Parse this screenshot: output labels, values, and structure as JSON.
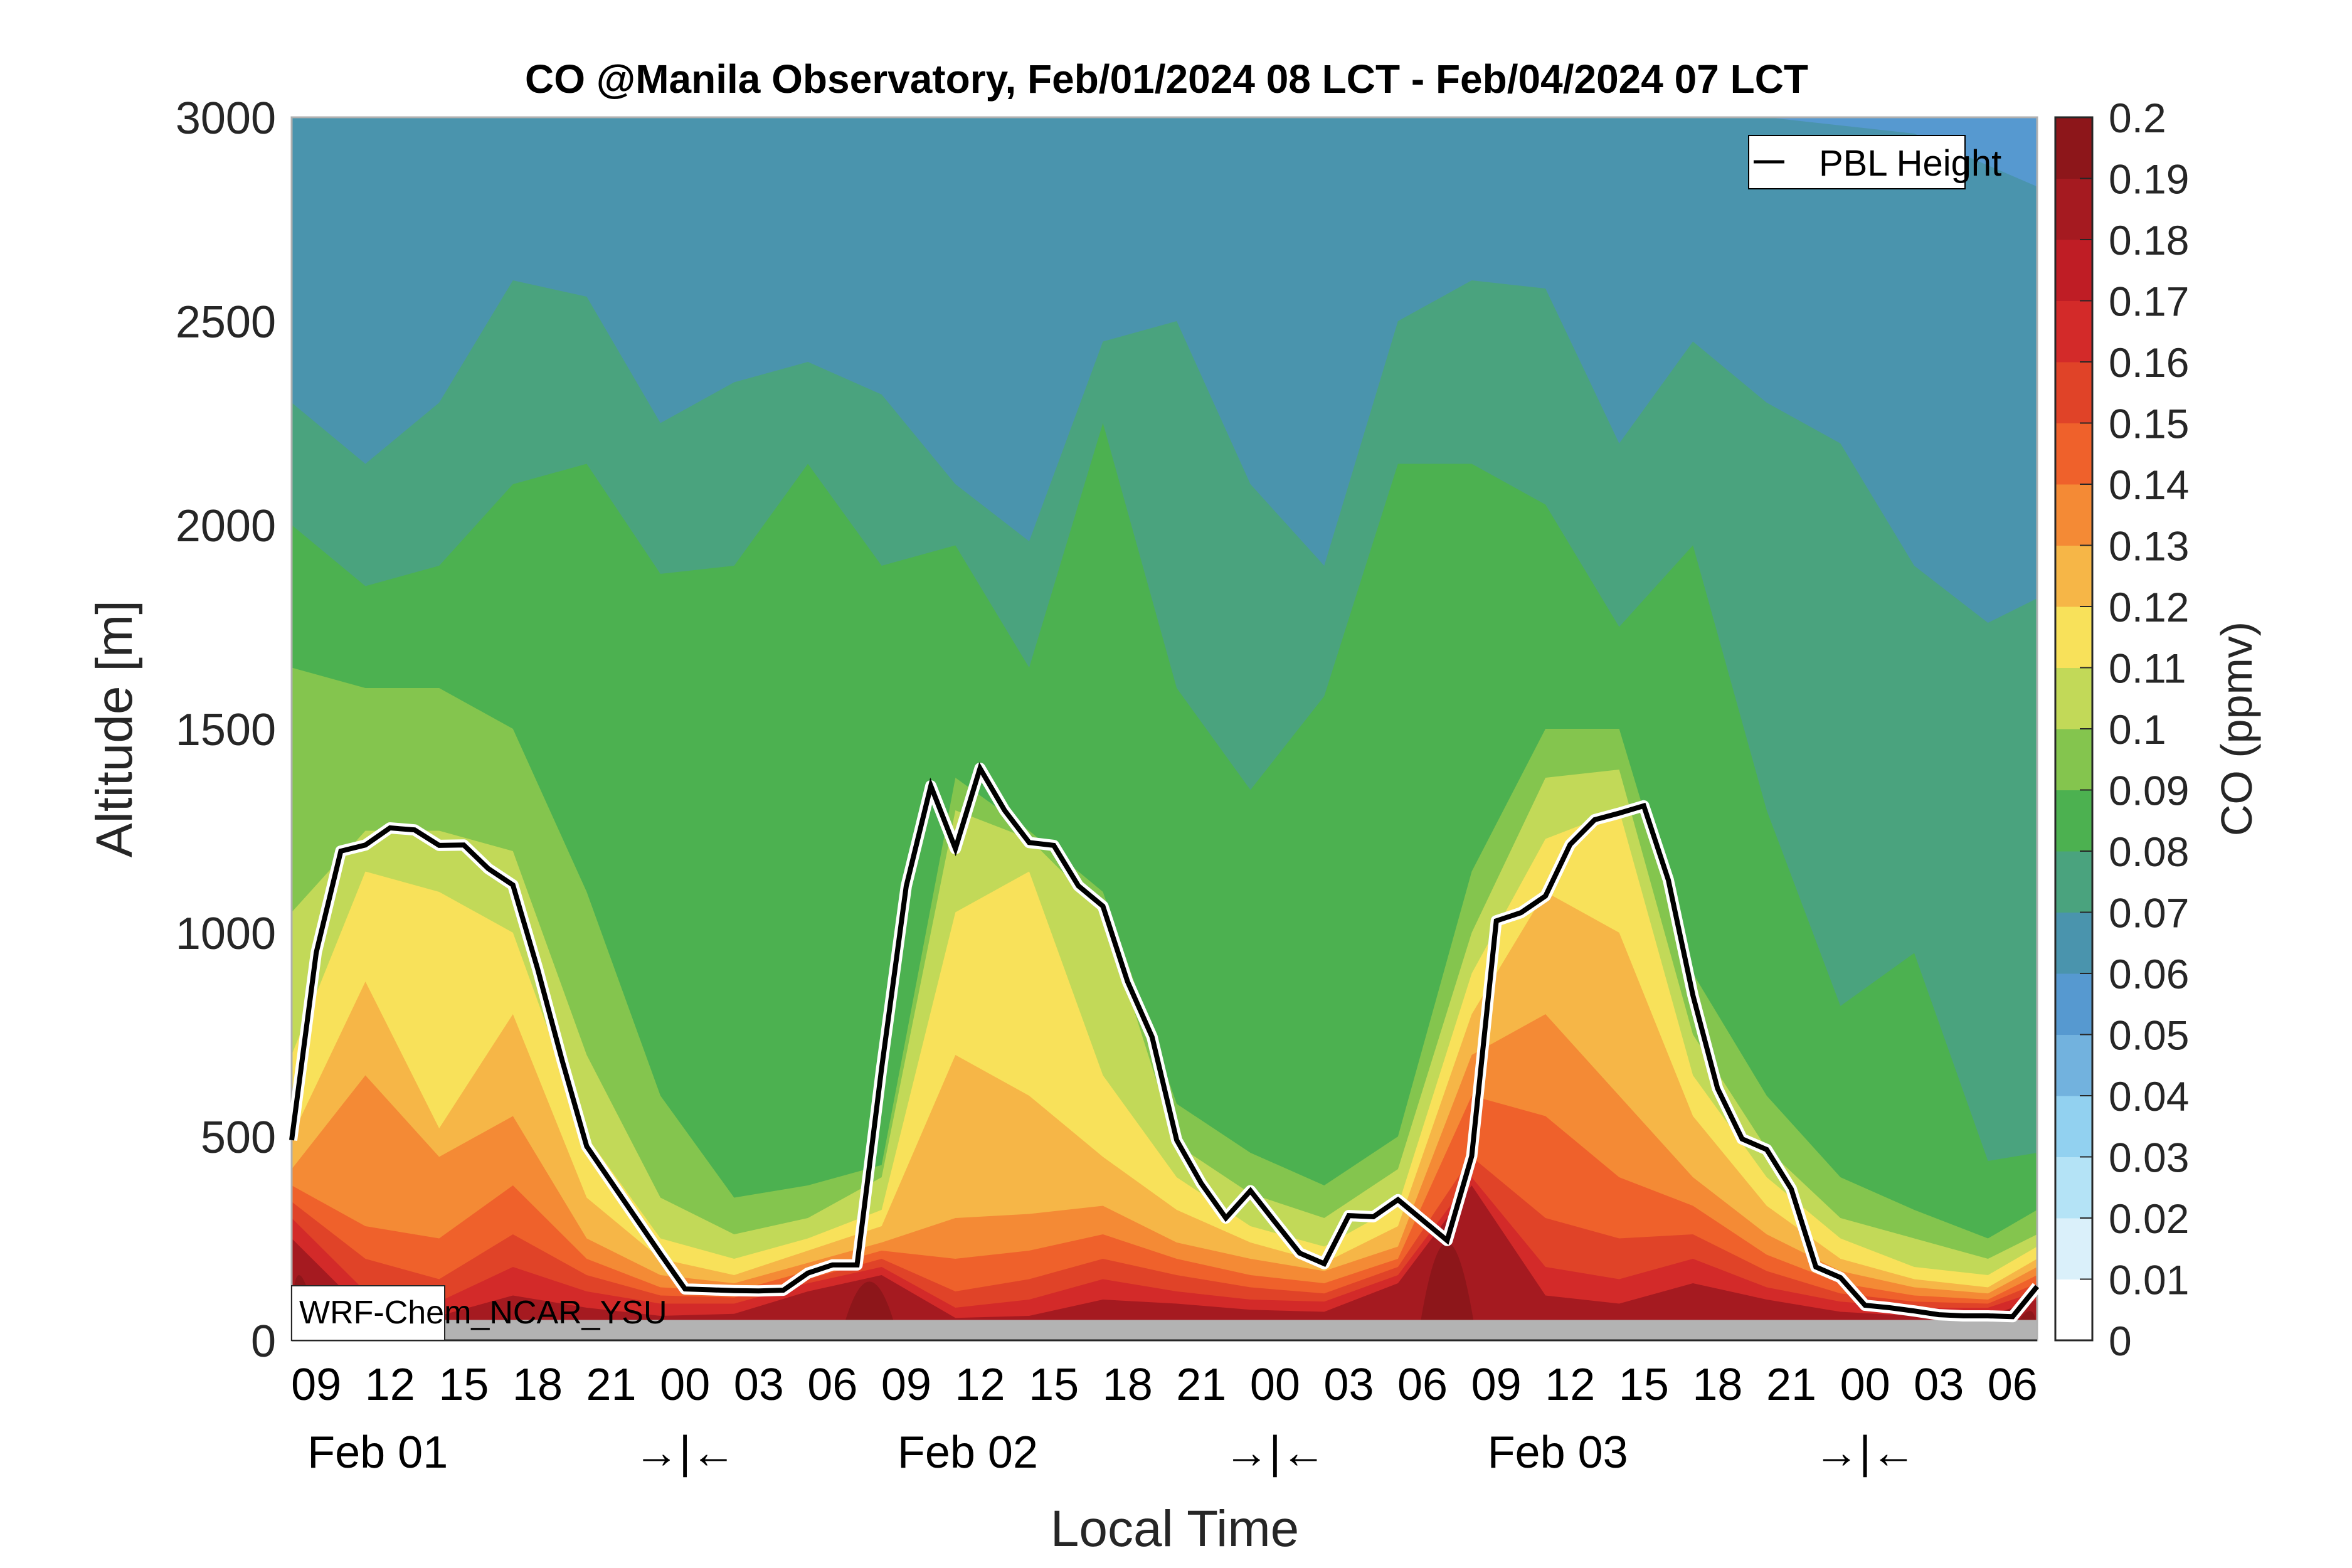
{
  "chart_data": {
    "type": "heatmap",
    "subtype": "filled-contour time-height cross-section with line overlay",
    "title": "CO @Manila Observatory, Feb/01/2024 08 LCT - Feb/04/2024 07 LCT",
    "xlabel": "Local Time",
    "ylabel": "Altitude [m]",
    "ylim": [
      0,
      3000
    ],
    "yticks": [
      "0",
      "500",
      "1000",
      "1500",
      "2000",
      "2500",
      "3000"
    ],
    "ytick_values": [
      0,
      500,
      1000,
      1500,
      2000,
      2500,
      3000
    ],
    "x_hours_range": [
      0,
      71
    ],
    "x_start_label": "Feb/01/2024 08 LCT",
    "xtick_labels": [
      "09",
      "12",
      "15",
      "18",
      "21",
      "00",
      "03",
      "06",
      "09",
      "12",
      "15",
      "18",
      "21",
      "00",
      "03",
      "06",
      "09",
      "12",
      "15",
      "18",
      "21",
      "00",
      "03",
      "06"
    ],
    "xtick_hours": [
      1,
      4,
      7,
      10,
      13,
      16,
      19,
      22,
      25,
      28,
      31,
      34,
      37,
      40,
      43,
      46,
      49,
      52,
      55,
      58,
      61,
      64,
      67,
      70
    ],
    "day_labels": [
      {
        "text": "Feb 01",
        "hour": 3.5
      },
      {
        "text": "Feb 02",
        "hour": 27.5
      },
      {
        "text": "Feb 03",
        "hour": 51.5
      }
    ],
    "day_separators": [
      {
        "text": "→|←",
        "hour": 16
      },
      {
        "text": "→|←",
        "hour": 40
      },
      {
        "text": "→|←",
        "hour": 64
      }
    ],
    "colorbar": {
      "label": "CO (ppmv)",
      "levels": [
        0,
        0.01,
        0.02,
        0.03,
        0.04,
        0.05,
        0.06,
        0.07,
        0.08,
        0.09,
        0.1,
        0.11,
        0.12,
        0.13,
        0.14,
        0.15,
        0.16,
        0.17,
        0.18,
        0.19,
        0.2
      ],
      "tick_labels": [
        "0",
        "0.01",
        "0.02",
        "0.03",
        "0.04",
        "0.05",
        "0.06",
        "0.07",
        "0.08",
        "0.09",
        "0.1",
        "0.11",
        "0.12",
        "0.13",
        "0.14",
        "0.15",
        "0.16",
        "0.17",
        "0.18",
        "0.19",
        "0.2"
      ],
      "colors": [
        "#ffffff",
        "#daf0fa",
        "#b4e3f6",
        "#92d1f0",
        "#72b2de",
        "#5699d0",
        "#4a94ad",
        "#4aa37e",
        "#4cb150",
        "#84c54e",
        "#c2d958",
        "#f8e15a",
        "#f6b647",
        "#f48a35",
        "#ef612b",
        "#e04328",
        "#d32a29",
        "#bf1d25",
        "#a51a20",
        "#8d161a"
      ]
    },
    "terrain": {
      "top_m": 50,
      "color": "#b3b3b3"
    },
    "annotation": "WRF-Chem_NCAR_YSU",
    "legend": {
      "entries": [
        "PBL Height"
      ],
      "placement": "top-right"
    },
    "series": [
      {
        "name": "PBL Height",
        "hours": [
          0,
          1,
          2,
          3,
          4,
          5,
          6,
          7,
          8,
          9,
          10,
          11,
          12,
          13,
          14,
          15,
          16,
          17,
          18,
          19,
          20,
          21,
          22,
          23,
          24,
          25,
          26,
          27,
          28,
          29,
          30,
          31,
          32,
          33,
          34,
          35,
          36,
          37,
          38,
          39,
          40,
          41,
          42,
          43,
          44,
          45,
          46,
          47,
          48,
          49,
          50,
          51,
          52,
          53,
          54,
          55,
          56,
          57,
          58,
          59,
          60,
          61,
          62,
          63,
          64,
          65,
          66,
          67,
          68,
          69,
          70,
          71
        ],
        "values": [
          491,
          951,
          1200,
          1215,
          1257,
          1252,
          1214,
          1215,
          1157,
          1117,
          912,
          687,
          476,
          388,
          300,
          212,
          126,
          124,
          122,
          121,
          123,
          165,
          185,
          185,
          668,
          1114,
          1360,
          1206,
          1403,
          1300,
          1221,
          1214,
          1115,
          1065,
          880,
          744,
          491,
          385,
          300,
          367,
          290,
          214,
          188,
          306,
          303,
          345,
          295,
          245,
          452,
          1029,
          1049,
          1090,
          1216,
          1277,
          1293,
          1311,
          1129,
          846,
          618,
          494,
          468,
          371,
          180,
          154,
          86,
          80,
          72,
          63,
          60,
          60,
          58,
          132
        ]
      }
    ],
    "contour_bands_approx": [
      {
        "level": 0.06,
        "upper_hours": [
          0,
          6,
          12,
          18,
          24,
          30,
          36,
          42,
          48,
          54,
          60,
          66,
          71
        ],
        "upper_m": [
          3000,
          3000,
          3000,
          3000,
          3000,
          3000,
          3000,
          3000,
          3000,
          3000,
          3000,
          2960,
          2830
        ]
      },
      {
        "level": 0.07,
        "upper_hours": [
          0,
          3,
          6,
          9,
          12,
          15,
          18,
          21,
          24,
          27,
          30,
          33,
          36,
          39,
          42,
          45,
          48,
          51,
          54,
          57,
          60,
          63,
          66,
          69,
          71
        ],
        "upper_m": [
          2300,
          2150,
          2300,
          2600,
          2560,
          2250,
          2350,
          2400,
          2320,
          2100,
          1960,
          2450,
          2500,
          2100,
          1900,
          2500,
          2600,
          2580,
          2200,
          2450,
          2300,
          2200,
          1900,
          1760,
          1820
        ]
      },
      {
        "level": 0.08,
        "upper_hours": [
          0,
          3,
          6,
          9,
          12,
          15,
          18,
          21,
          24,
          27,
          30,
          33,
          36,
          39,
          42,
          45,
          48,
          51,
          54,
          57,
          60,
          63,
          66,
          69,
          71
        ],
        "upper_m": [
          2000,
          1850,
          1900,
          2100,
          2150,
          1880,
          1900,
          2150,
          1900,
          1950,
          1650,
          2250,
          1600,
          1350,
          1580,
          2150,
          2150,
          2050,
          1750,
          1950,
          1300,
          820,
          950,
          440,
          460
        ]
      },
      {
        "level": 0.09,
        "upper_hours": [
          0,
          3,
          6,
          9,
          12,
          15,
          18,
          21,
          24,
          27,
          30,
          33,
          36,
          39,
          42,
          45,
          48,
          51,
          54,
          57,
          60,
          63,
          66,
          69,
          71
        ],
        "upper_m": [
          1650,
          1600,
          1600,
          1500,
          1100,
          600,
          350,
          380,
          430,
          1380,
          1250,
          1100,
          580,
          460,
          380,
          500,
          1150,
          1500,
          1500,
          900,
          600,
          400,
          320,
          250,
          320
        ]
      },
      {
        "level": 0.1,
        "upper_hours": [
          0,
          3,
          6,
          9,
          12,
          15,
          18,
          21,
          24,
          27,
          30,
          33,
          36,
          39,
          42,
          45,
          48,
          51,
          54,
          57,
          60,
          63,
          66,
          69,
          71
        ],
        "upper_m": [
          1050,
          1250,
          1250,
          1200,
          700,
          350,
          260,
          300,
          400,
          1300,
          1230,
          1050,
          480,
          360,
          300,
          420,
          1000,
          1380,
          1400,
          750,
          470,
          300,
          250,
          200,
          260
        ]
      },
      {
        "level": 0.11,
        "upper_hours": [
          0,
          3,
          6,
          9,
          12,
          15,
          18,
          21,
          24,
          27,
          30,
          33,
          36,
          39,
          42,
          45,
          48,
          51,
          54,
          57,
          60,
          63,
          66,
          69,
          71
        ],
        "upper_m": [
          700,
          1150,
          1100,
          1000,
          500,
          250,
          200,
          250,
          320,
          1050,
          1150,
          650,
          400,
          280,
          230,
          330,
          900,
          1230,
          1300,
          650,
          400,
          250,
          180,
          160,
          230
        ]
      },
      {
        "level": 0.12,
        "upper_hours": [
          0,
          3,
          6,
          9,
          12,
          15,
          18,
          21,
          24,
          27,
          30,
          33,
          36,
          39,
          42,
          45,
          48,
          51,
          54,
          57,
          60,
          63,
          66,
          69,
          71
        ],
        "upper_m": [
          500,
          880,
          520,
          800,
          350,
          200,
          160,
          220,
          280,
          700,
          600,
          450,
          320,
          240,
          190,
          280,
          800,
          1100,
          1000,
          550,
          330,
          200,
          150,
          130,
          200
        ]
      },
      {
        "level": 0.13,
        "upper_hours": [
          0,
          3,
          6,
          9,
          12,
          15,
          18,
          21,
          24,
          27,
          30,
          33,
          36,
          39,
          42,
          45,
          48,
          51,
          54,
          57,
          60,
          63,
          66,
          69,
          71
        ],
        "upper_m": [
          420,
          650,
          450,
          550,
          250,
          160,
          140,
          190,
          240,
          300,
          310,
          330,
          240,
          200,
          170,
          230,
          700,
          800,
          600,
          400,
          260,
          170,
          130,
          115,
          180
        ]
      },
      {
        "level": 0.14,
        "upper_hours": [
          0,
          3,
          6,
          9,
          12,
          15,
          18,
          21,
          24,
          27,
          30,
          33,
          36,
          39,
          42,
          45,
          48,
          51,
          54,
          57,
          60,
          63,
          66,
          69,
          71
        ],
        "upper_m": [
          380,
          280,
          250,
          380,
          200,
          130,
          120,
          170,
          220,
          200,
          220,
          260,
          200,
          160,
          140,
          200,
          600,
          550,
          400,
          330,
          210,
          140,
          110,
          100,
          160
        ]
      },
      {
        "level": 0.15,
        "upper_hours": [
          0,
          3,
          6,
          9,
          12,
          15,
          18,
          21,
          24,
          27,
          30,
          33,
          36,
          39,
          42,
          45,
          48,
          51,
          54,
          57,
          60,
          63,
          66,
          69,
          71
        ],
        "upper_m": [
          340,
          200,
          150,
          260,
          160,
          110,
          105,
          150,
          200,
          120,
          150,
          200,
          160,
          130,
          115,
          180,
          450,
          300,
          250,
          260,
          170,
          115,
          95,
          90,
          140
        ]
      },
      {
        "level": 0.16,
        "upper_hours": [
          0,
          3,
          6,
          9,
          12,
          15,
          18,
          21,
          24,
          27,
          30,
          33,
          36,
          39,
          42,
          45,
          48,
          51,
          54,
          57,
          60,
          63,
          66,
          69,
          71
        ],
        "upper_m": [
          300,
          120,
          95,
          180,
          120,
          90,
          90,
          140,
          180,
          80,
          100,
          150,
          120,
          100,
          95,
          160,
          400,
          180,
          150,
          200,
          130,
          95,
          80,
          80,
          120
        ]
      },
      {
        "level": 0.18,
        "upper_hours": [
          0,
          3,
          6,
          9,
          12,
          15,
          18,
          21,
          24,
          27,
          30,
          33,
          36,
          39,
          42,
          45,
          48,
          51,
          54,
          57,
          60,
          63,
          66,
          69,
          71
        ],
        "upper_m": [
          250,
          70,
          60,
          110,
          80,
          60,
          65,
          120,
          160,
          55,
          60,
          100,
          90,
          75,
          70,
          140,
          380,
          110,
          90,
          140,
          100,
          70,
          60,
          60,
          100
        ]
      }
    ]
  }
}
